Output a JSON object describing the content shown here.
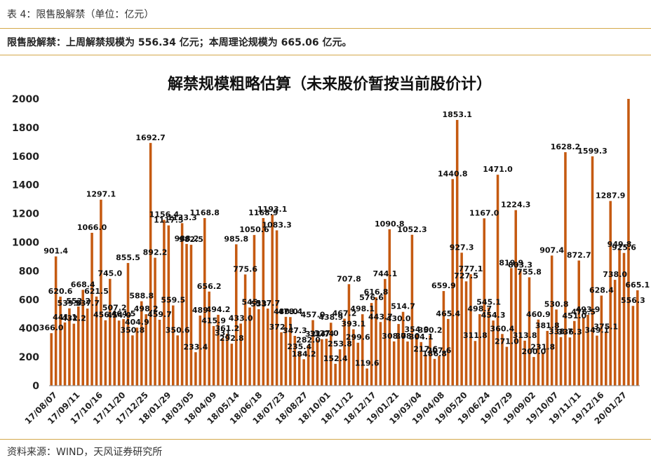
{
  "header": {
    "caption": "表 4：限售股解禁（单位：亿元）"
  },
  "summary": {
    "text": "限售股解禁：上周解禁规模为 556.34 亿元；本周理论规模为 665.06 亿元。"
  },
  "footer": {
    "source": "资料来源：WIND，天风证券研究所"
  },
  "colors": {
    "bar": "#c55a11",
    "rule": "#d4a84a",
    "axis": "#888888"
  },
  "chart_data": {
    "type": "bar",
    "title": "解禁规模粗略估算（未来股价暂按当前股价计）",
    "xlabel": "",
    "ylabel": "",
    "ylim": [
      0,
      2000
    ],
    "yticks": [
      0,
      200,
      400,
      600,
      800,
      1000,
      1200,
      1400,
      1600,
      1800,
      2000
    ],
    "grid": false,
    "x_tick_labels": [
      "17/08/07",
      "17/09/11",
      "17/10/16",
      "17/11/20",
      "17/12/25",
      "18/01/29",
      "18/03/05",
      "18/04/09",
      "18/05/14",
      "18/06/18",
      "18/07/23",
      "18/08/27",
      "18/10/01",
      "18/11/12",
      "18/12/17",
      "19/01/21",
      "19/03/04",
      "19/04/08",
      "19/05/20",
      "19/06/24",
      "19/07/29",
      "19/09/02",
      "19/10/07",
      "19/11/11",
      "19/12/16",
      "20/01/27"
    ],
    "values": [
      366.0,
      901.4,
      620.6,
      441.1,
      539.0,
      432.2,
      552.2,
      668.4,
      537.7,
      1066.0,
      621.5,
      1297.1,
      456.1,
      745.0,
      507.2,
      454.0,
      464.5,
      855.5,
      350.8,
      404.9,
      588.8,
      498.2,
      1692.7,
      892.2,
      459.7,
      1156.4,
      1117.5,
      559.5,
      350.6,
      1133.3,
      988.2,
      982.5,
      233.4,
      489,
      1168.8,
      656.2,
      415.9,
      494.2,
      331,
      361.2,
      292.8,
      985.8,
      433.0,
      775.6,
      545,
      1050.6,
      533,
      1168.9,
      537.7,
      1193.1,
      1083.3,
      372.1,
      480.0,
      478.4,
      347.3,
      235.4,
      184.2,
      282.0,
      457.0,
      321.7,
      324.4,
      327.0,
      438.9,
      152.4,
      253.8,
      467.2,
      707.8,
      393.1,
      299.6,
      498.1,
      119.6,
      576.6,
      616.8,
      443.7,
      744.1,
      1090.8,
      308.7,
      430.0,
      514.7,
      308.0,
      1052.3,
      354.0,
      304.1,
      217.6,
      350.2,
      186.8,
      207.6,
      659.9,
      465.4,
      1440.8,
      1853.1,
      927.3,
      727.5,
      777.1,
      311.8,
      498.7,
      1167.0,
      545.1,
      454.3,
      1471.0,
      360.4,
      271.0,
      819.9,
      1224.3,
      803.3,
      313.8,
      755.8,
      200.0,
      460.9,
      231.8,
      381.8,
      907.4,
      530.8,
      338.7,
      1628.2,
      336.3,
      451.0,
      872.7,
      476.5,
      493.9,
      1599.3,
      349.1,
      628.4,
      375.1,
      1287.9,
      738.0,
      949.8,
      925.6,
      2000.0,
      556.3,
      665.1
    ],
    "data_labels": [
      "366.0",
      "901.4",
      "620.6",
      "441.1",
      "539.0",
      "432.2",
      "552.2",
      "668.4",
      "537.7",
      "1066.0",
      "621.5",
      "1297.1",
      "456.1",
      "745.0",
      "507.2",
      "454.0",
      "464.5",
      "855.5",
      "350.8",
      "404.9",
      "588.8",
      "498.2",
      "1692.7",
      "892.2",
      "459.7",
      "1156.4",
      "1117.5",
      "559.5",
      "350.6",
      "1133.3",
      "988.2",
      "982.5",
      "233.4",
      "489",
      "1168.8",
      "656.2",
      "415.9",
      "494.2",
      "331",
      "361.2",
      "292.8",
      "985.8",
      "433.0",
      "775.6",
      "545",
      "1050.6",
      "533",
      "1168.9",
      "537.7",
      "1193.1",
      "1083.3",
      "372.1",
      "480.0",
      "478.4",
      "347.3",
      "235.4",
      "184.2",
      "282.0",
      "457.0",
      "321.7",
      "324.4",
      "327.0",
      "438.9",
      "152.4",
      "253.8",
      "467.2",
      "707.8",
      "393.1",
      "299.6",
      "498.1",
      "119.6",
      "576.6",
      "616.8",
      "443.7",
      "744.1",
      "1090.8",
      "308.7",
      "430.0",
      "514.7",
      "308.0",
      "1052.3",
      "354.0",
      "304.1",
      "217.6",
      "350.2",
      "186.8",
      "207.6",
      "659.9",
      "465.4",
      "1440.8",
      "1853.1",
      "927.3",
      "727.5",
      "777.1",
      "311.8",
      "498.7",
      "1167.0",
      "545.1",
      "454.3",
      "1471.0",
      "360.4",
      "271.0",
      "819.9",
      "1224.3",
      "803.3",
      "313.8",
      "755.8",
      "200.0",
      "460.9",
      "231.8",
      "381.8",
      "907.4",
      "530.8",
      "338.7",
      "1628.2",
      "336.3",
      "451.0",
      "872.7",
      "476.5",
      "493.9",
      "1599.3",
      "349.1",
      "628.4",
      "375.1",
      "1287.9",
      "738.0",
      "949.8",
      "925.6",
      "",
      "556.3",
      "665.1"
    ]
  }
}
